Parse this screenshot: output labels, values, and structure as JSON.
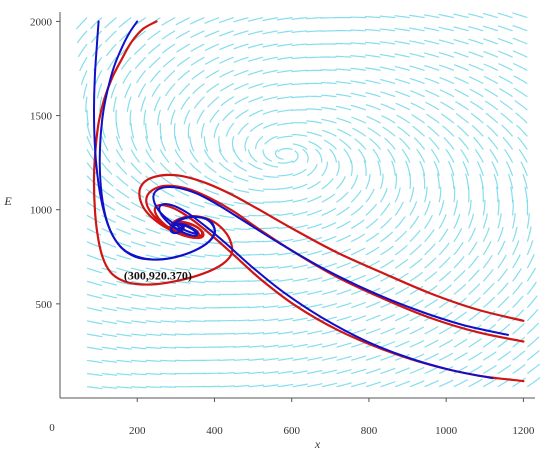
{
  "chart_data": {
    "type": "line",
    "xlabel": "x",
    "ylabel": "E",
    "xlim": [
      0,
      1230
    ],
    "ylim": [
      0,
      2050
    ],
    "x_ticks": [
      "0",
      "200",
      "400",
      "600",
      "800",
      "1000",
      "1200"
    ],
    "y_ticks": [
      "500",
      "1000",
      "1500",
      "2000"
    ],
    "grid": false,
    "legend": "none",
    "annotation": {
      "text": "(300,920.370)",
      "x": 300,
      "y": 920.37
    },
    "equilibrium": {
      "x": 300,
      "y": 920.37
    },
    "colors": {
      "field": "#5cd3e6",
      "red": "#d01515",
      "blue": "#1010c8",
      "axis": "#555555"
    },
    "series": [
      {
        "color": "red",
        "x": [
          250,
          215,
          185,
          160,
          135,
          115,
          100,
          92,
          88,
          90,
          97,
          110,
          130,
          160,
          200,
          250,
          310,
          370,
          420,
          445,
          440,
          420,
          390,
          355,
          325,
          305,
          292,
          286,
          288,
          295,
          305,
          315,
          320,
          320,
          315,
          308,
          302,
          300
        ],
        "y": [
          2000,
          1960,
          1890,
          1800,
          1700,
          1590,
          1460,
          1320,
          1170,
          1010,
          870,
          750,
          670,
          625,
          605,
          605,
          625,
          660,
          710,
          770,
          840,
          900,
          945,
          965,
          962,
          948,
          930,
          912,
          895,
          882,
          880,
          888,
          900,
          912,
          920,
          924,
          922,
          920.37
        ]
      },
      {
        "color": "blue",
        "x": [
          200,
          180,
          160,
          140,
          125,
          112,
          105,
          103,
          108,
          120,
          140,
          170,
          210,
          255,
          300,
          345,
          385,
          400,
          395,
          378,
          355,
          330,
          310,
          297,
          290,
          289,
          294,
          303,
          312,
          318,
          318,
          313,
          306,
          301,
          300
        ],
        "y": [
          2000,
          1940,
          1860,
          1760,
          1650,
          1520,
          1380,
          1230,
          1080,
          950,
          850,
          780,
          745,
          735,
          748,
          780,
          830,
          880,
          920,
          950,
          962,
          960,
          948,
          930,
          910,
          893,
          880,
          877,
          885,
          898,
          910,
          918,
          921,
          921,
          920.37
        ]
      },
      {
        "color": "blue",
        "x": [
          100,
          95,
          90,
          88,
          90,
          97,
          110,
          130,
          158,
          195,
          240,
          290,
          340,
          380,
          400,
          398,
          385,
          362,
          337,
          315,
          299,
          290,
          287,
          290,
          298,
          308,
          316,
          319,
          316,
          309,
          302,
          300
        ],
        "y": [
          2000,
          1860,
          1700,
          1530,
          1350,
          1180,
          1020,
          890,
          800,
          750,
          735,
          745,
          775,
          820,
          870,
          915,
          945,
          960,
          960,
          948,
          930,
          910,
          892,
          880,
          876,
          882,
          895,
          908,
          918,
          922,
          921,
          920.37
        ]
      },
      {
        "color": "red",
        "x": [
          1200,
          1080,
          960,
          840,
          720,
          610,
          520,
          450,
          395,
          350,
          315,
          285,
          262,
          248,
          246,
          255,
          273,
          298,
          323,
          345,
          358,
          360,
          352,
          337,
          320,
          306,
          297,
          293,
          295,
          300,
          307,
          313,
          316,
          315,
          310,
          304,
          300
        ],
        "y": [
          90,
          120,
          175,
          255,
          360,
          490,
          630,
          760,
          860,
          935,
          985,
          1015,
          1025,
          1015,
          990,
          955,
          918,
          885,
          862,
          852,
          856,
          870,
          890,
          908,
          920,
          925,
          922,
          914,
          905,
          898,
          898,
          904,
          912,
          919,
          922,
          922,
          920.37
        ]
      },
      {
        "color": "blue",
        "x": [
          1120,
          1010,
          900,
          790,
          680,
          580,
          495,
          430,
          378,
          336,
          302,
          277,
          262,
          257,
          262,
          276,
          296,
          318,
          337,
          350,
          355,
          351,
          340,
          326,
          313,
          303,
          297,
          295,
          298,
          305,
          311,
          315,
          315,
          310,
          304,
          300
        ],
        "y": [
          105,
          150,
          215,
          305,
          425,
          560,
          700,
          820,
          910,
          975,
          1015,
          1030,
          1025,
          1005,
          975,
          940,
          905,
          880,
          866,
          862,
          868,
          882,
          899,
          913,
          921,
          923,
          918,
          910,
          903,
          899,
          901,
          908,
          916,
          921,
          922,
          920.37
        ]
      },
      {
        "color": "red",
        "x": [
          1200,
          1080,
          960,
          840,
          720,
          610,
          520,
          450,
          390,
          340,
          298,
          265,
          240,
          226,
          224,
          234,
          254,
          282,
          312,
          340,
          360,
          368,
          364,
          350,
          332,
          314,
          301,
          294,
          294,
          298,
          306,
          313,
          318,
          318,
          313,
          306,
          301,
          300
        ],
        "y": [
          300,
          350,
          425,
          525,
          640,
          770,
          890,
          990,
          1060,
          1105,
          1125,
          1125,
          1105,
          1075,
          1035,
          990,
          945,
          905,
          875,
          860,
          860,
          872,
          892,
          912,
          925,
          930,
          926,
          916,
          905,
          897,
          895,
          900,
          910,
          918,
          922,
          922,
          921,
          920.37
        ]
      },
      {
        "color": "blue",
        "x": [
          1160,
          1040,
          920,
          800,
          680,
          570,
          480,
          410,
          355,
          310,
          275,
          252,
          242,
          245,
          258,
          280,
          306,
          330,
          348,
          356,
          354,
          344,
          330,
          316,
          305,
          298,
          296,
          299,
          305,
          312,
          316,
          315,
          310,
          304,
          300
        ],
        "y": [
          335,
          390,
          470,
          570,
          690,
          820,
          935,
          1025,
          1085,
          1115,
          1120,
          1105,
          1075,
          1035,
          990,
          948,
          912,
          886,
          874,
          874,
          884,
          900,
          915,
          924,
          925,
          920,
          911,
          903,
          899,
          901,
          908,
          916,
          921,
          922,
          920.37
        ]
      },
      {
        "color": "red",
        "x": [
          1200,
          1080,
          960,
          840,
          720,
          610,
          520,
          445,
          380,
          325,
          280,
          245,
          220,
          207,
          207,
          218,
          240,
          270,
          304,
          335,
          358,
          370,
          370,
          360,
          344,
          326,
          311,
          300,
          294,
          294,
          298,
          305,
          313,
          318,
          318,
          313,
          306,
          301,
          300
        ],
        "y": [
          410,
          470,
          555,
          660,
          770,
          890,
          995,
          1080,
          1140,
          1175,
          1185,
          1175,
          1150,
          1110,
          1060,
          1005,
          955,
          910,
          875,
          855,
          850,
          858,
          878,
          900,
          920,
          932,
          935,
          930,
          920,
          908,
          898,
          893,
          896,
          905,
          915,
          921,
          922,
          921,
          920.37
        ]
      }
    ]
  }
}
